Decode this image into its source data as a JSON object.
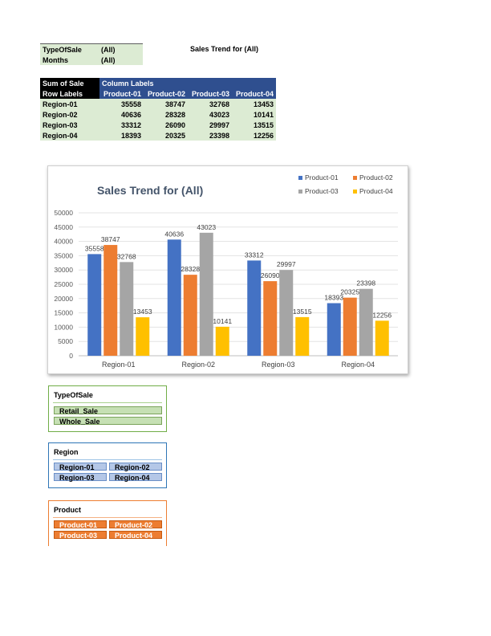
{
  "filters": [
    {
      "label": "TypeOfSale",
      "value": "(All)"
    },
    {
      "label": "Months",
      "value": "(All)"
    }
  ],
  "sheet_title": "Sales Trend for (All)",
  "pivot": {
    "corner_top": "Sum of Sale",
    "column_labels": "Column Labels",
    "row_labels": "Row Labels",
    "columns": [
      "Product-01",
      "Product-02",
      "Product-03",
      "Product-04"
    ],
    "rows": [
      {
        "label": "Region-01",
        "values": [
          "35558",
          "38747",
          "32768",
          "13453"
        ]
      },
      {
        "label": "Region-02",
        "values": [
          "40636",
          "28328",
          "43023",
          "10141"
        ]
      },
      {
        "label": "Region-03",
        "values": [
          "33312",
          "26090",
          "29997",
          "13515"
        ]
      },
      {
        "label": "Region-04",
        "values": [
          "18393",
          "20325",
          "23398",
          "12256"
        ]
      }
    ]
  },
  "chart_data": {
    "type": "bar",
    "title": "Sales Trend for (All)",
    "categories": [
      "Region-01",
      "Region-02",
      "Region-03",
      "Region-04"
    ],
    "series": [
      {
        "name": "Product-01",
        "values": [
          35558,
          40636,
          33312,
          18393
        ],
        "color": "#4472c4"
      },
      {
        "name": "Product-02",
        "values": [
          38747,
          28328,
          26090,
          20325
        ],
        "color": "#ed7d31"
      },
      {
        "name": "Product-03",
        "values": [
          32768,
          43023,
          29997,
          23398
        ],
        "color": "#a5a5a5"
      },
      {
        "name": "Product-04",
        "values": [
          13453,
          10141,
          13515,
          12256
        ],
        "color": "#ffc000"
      }
    ],
    "yticks": [
      "50000",
      "45000",
      "40000",
      "35000",
      "30000",
      "25000",
      "20000",
      "15000",
      "10000",
      "5000",
      "0"
    ],
    "ylim": [
      0,
      50000
    ],
    "grid": true,
    "legend_position": "top-right",
    "data_labels": true,
    "xlabel": "",
    "ylabel": ""
  },
  "slicers": {
    "type_of_sale": {
      "title": "TypeOfSale",
      "items": [
        "Retail_Sale",
        "Whole_Sale"
      ]
    },
    "region": {
      "title": "Region",
      "items": [
        "Region-01",
        "Region-02",
        "Region-03",
        "Region-04"
      ]
    },
    "product": {
      "title": "Product",
      "items": [
        "Product-01",
        "Product-02",
        "Product-03",
        "Product-04"
      ]
    }
  },
  "colors": {
    "pivot_header": "#2f4f8f",
    "pivot_row_fill": "#dcebd3",
    "slicer_green": "#70ad47",
    "slicer_blue": "#2e75b6",
    "slicer_orange": "#ed7d31"
  }
}
